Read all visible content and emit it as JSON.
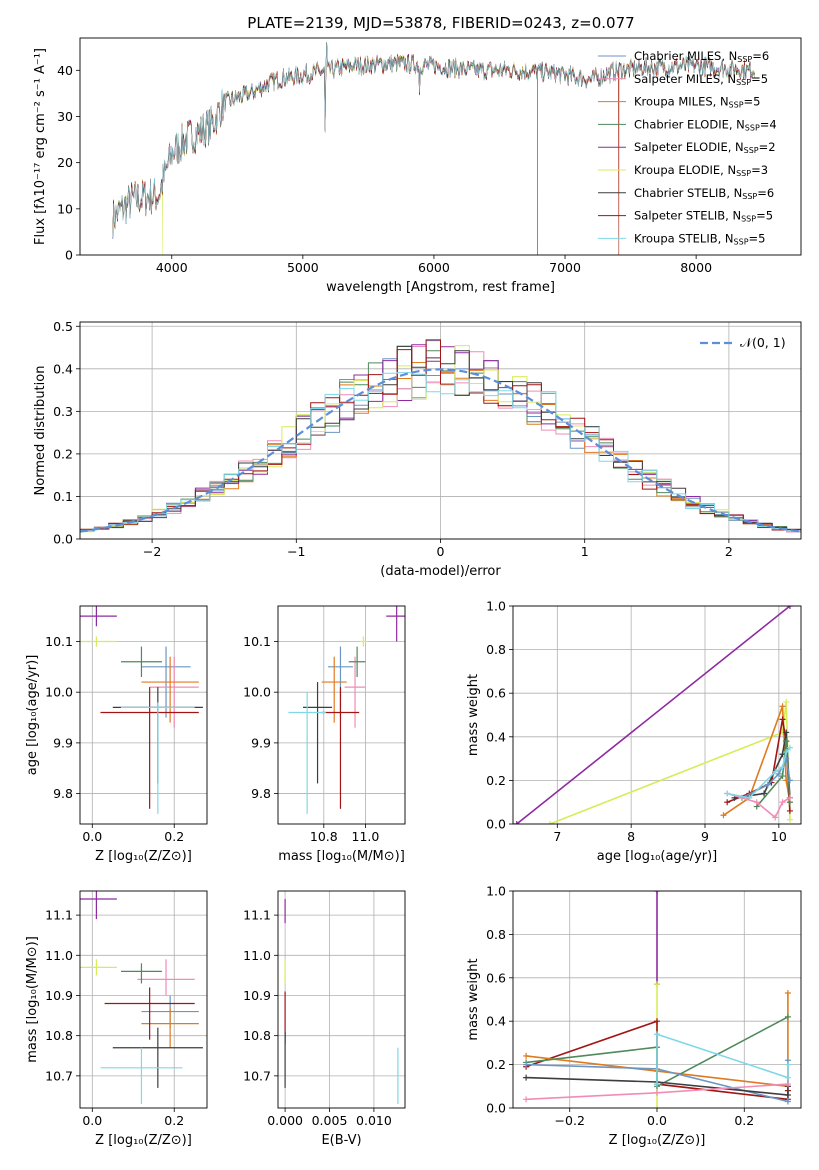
{
  "title": "PLATE=2139, MJD=53878, FIBERID=0243, z=0.077",
  "chart_data": [
    {
      "id": "spectrum",
      "type": "line",
      "xlabel": "wavelength [Angstrom, rest frame]",
      "ylabel": "Flux [fλ10⁻¹⁷ erg cm⁻² s⁻¹ A⁻¹]",
      "xlim": [
        3300,
        8800
      ],
      "ylim": [
        0,
        47
      ],
      "xticks": [
        4000,
        5000,
        6000,
        7000,
        8000
      ],
      "yticks": [
        0,
        10,
        20,
        30,
        40
      ],
      "grid": false,
      "legend_position": "top-right",
      "legend": [
        {
          "label": "Chabrier MILES, N",
          "sub": "SSP",
          "suffix": "=6",
          "color": "#6b96c4"
        },
        {
          "label": "Salpeter MILES, N",
          "sub": "SSP",
          "suffix": "=5",
          "color": "#f08cb6"
        },
        {
          "label": "Kroupa MILES, N",
          "sub": "SSP",
          "suffix": "=5",
          "color": "#e07a1f"
        },
        {
          "label": "Chabrier ELODIE, N",
          "sub": "SSP",
          "suffix": "=4",
          "color": "#4e8a5a"
        },
        {
          "label": "Salpeter ELODIE, N",
          "sub": "SSP",
          "suffix": "=2",
          "color": "#8e2ba0"
        },
        {
          "label": "Kroupa ELODIE, N",
          "sub": "SSP",
          "suffix": "=3",
          "color": "#d7ec5a"
        },
        {
          "label": "Chabrier STELIB, N",
          "sub": "SSP",
          "suffix": "=6",
          "color": "#3d3d3d"
        },
        {
          "label": "Salpeter STELIB, N",
          "sub": "SSP",
          "suffix": "=5",
          "color": "#a11515"
        },
        {
          "label": "Kroupa STELIB, N",
          "sub": "SSP",
          "suffix": "=5",
          "color": "#7fd8e8"
        }
      ],
      "continuum": {
        "x": [
          3550,
          3700,
          3900,
          4000,
          4100,
          4300,
          4400,
          4600,
          4800,
          5000,
          5200,
          5400,
          5700,
          6000,
          6300,
          6600,
          6900,
          7200,
          7400,
          7600,
          8000,
          8400
        ],
        "y": [
          8,
          12,
          13,
          22,
          25,
          28,
          33,
          35,
          38,
          39,
          40,
          41,
          41.5,
          41,
          40,
          40,
          39.5,
          38,
          40,
          40.5,
          41,
          40
        ]
      },
      "features": [
        {
          "name": "spike",
          "x": 5180,
          "y": 46
        },
        {
          "name": "dip",
          "x": 5170,
          "y": 27
        },
        {
          "name": "dip",
          "x": 5890,
          "y": 35
        },
        {
          "name": "drop",
          "x": 3930,
          "y": 0
        },
        {
          "name": "drop",
          "x": 6790,
          "y": 0
        },
        {
          "name": "drop",
          "x": 7410,
          "y": 0
        }
      ]
    },
    {
      "id": "residuals",
      "type": "histogram",
      "xlabel": "(data-model)/error",
      "ylabel": "Normed distribution",
      "xlim": [
        -2.5,
        2.5
      ],
      "ylim": [
        0,
        0.51
      ],
      "xticks": [
        -2,
        -1,
        0,
        1,
        2
      ],
      "yticks": [
        0.0,
        0.1,
        0.2,
        0.3,
        0.4,
        0.5
      ],
      "grid": true,
      "reference": {
        "label": "𝒩(0, 1)",
        "mean": 0,
        "sigma": 1,
        "color": "#5b8fd9"
      },
      "bin_width": 0.1,
      "legend_position": "top-right"
    },
    {
      "id": "age-vs-Z",
      "type": "errorbar",
      "xlabel": "Z [log₁₀(Z/Z⊙)]",
      "ylabel": "age  [log₁₀(age/yr)]",
      "xlim": [
        -0.03,
        0.28
      ],
      "ylim": [
        9.74,
        10.17
      ],
      "xticks": [
        0.0,
        0.2
      ],
      "yticks": [
        9.8,
        9.9,
        10.0,
        10.1
      ],
      "grid": true,
      "points": [
        {
          "x": 0.18,
          "y": 10.05,
          "xerr": 0.06,
          "yerr_lo": 0.1,
          "yerr_hi": 0.04,
          "color": "#6b96c4"
        },
        {
          "x": 0.2,
          "y": 10.01,
          "xerr": 0.06,
          "yerr_lo": 0.08,
          "yerr_hi": 0.06,
          "color": "#f08cb6"
        },
        {
          "x": 0.19,
          "y": 10.02,
          "xerr": 0.07,
          "yerr_lo": 0.08,
          "yerr_hi": 0.05,
          "color": "#e07a1f"
        },
        {
          "x": 0.12,
          "y": 10.06,
          "xerr": 0.05,
          "yerr_lo": 0.03,
          "yerr_hi": 0.03,
          "color": "#4e8a5a"
        },
        {
          "x": 0.01,
          "y": 10.15,
          "xerr": 0.05,
          "yerr_lo": 0.02,
          "yerr_hi": 0.02,
          "color": "#8e2ba0"
        },
        {
          "x": 0.01,
          "y": 10.1,
          "xerr": 0.05,
          "yerr_lo": 0.01,
          "yerr_hi": 0.01,
          "color": "#d7ec5a"
        },
        {
          "x": 0.16,
          "y": 9.97,
          "xerr": 0.11,
          "yerr_lo": 0.15,
          "yerr_hi": 0.04,
          "color": "#3d3d3d"
        },
        {
          "x": 0.14,
          "y": 9.96,
          "xerr": 0.12,
          "yerr_lo": 0.19,
          "yerr_hi": 0.05,
          "color": "#a11515"
        },
        {
          "x": 0.16,
          "y": 9.97,
          "xerr": 0.09,
          "yerr_lo": 0.21,
          "yerr_hi": 0.01,
          "color": "#7fd8e8"
        }
      ]
    },
    {
      "id": "age-vs-mass",
      "type": "errorbar",
      "xlabel": "mass [log₁₀(M/M⊙)]",
      "ylabel": "",
      "xlim": [
        10.58,
        11.19
      ],
      "ylim": [
        9.74,
        10.17
      ],
      "xticks": [
        10.8,
        11.0
      ],
      "yticks": [
        9.8,
        9.9,
        10.0,
        10.1
      ],
      "grid": true,
      "points": [
        {
          "x": 10.88,
          "y": 10.05,
          "xerr": 0.06,
          "yerr_lo": 0.1,
          "yerr_hi": 0.04,
          "color": "#6b96c4"
        },
        {
          "x": 10.95,
          "y": 10.01,
          "xerr": 0.05,
          "yerr_lo": 0.08,
          "yerr_hi": 0.06,
          "color": "#f08cb6"
        },
        {
          "x": 10.85,
          "y": 10.02,
          "xerr": 0.06,
          "yerr_lo": 0.08,
          "yerr_hi": 0.05,
          "color": "#e07a1f"
        },
        {
          "x": 10.96,
          "y": 10.06,
          "xerr": 0.04,
          "yerr_lo": 0.03,
          "yerr_hi": 0.03,
          "color": "#4e8a5a"
        },
        {
          "x": 11.15,
          "y": 10.15,
          "xerr": 0.05,
          "yerr_lo": 0.05,
          "yerr_hi": 0.02,
          "color": "#8e2ba0"
        },
        {
          "x": 10.99,
          "y": 10.1,
          "xerr": 0.02,
          "yerr_lo": 0.01,
          "yerr_hi": 0.01,
          "color": "#d7ec5a"
        },
        {
          "x": 10.77,
          "y": 9.97,
          "xerr": 0.07,
          "yerr_lo": 0.15,
          "yerr_hi": 0.05,
          "color": "#3d3d3d"
        },
        {
          "x": 10.88,
          "y": 9.96,
          "xerr": 0.09,
          "yerr_lo": 0.19,
          "yerr_hi": 0.05,
          "color": "#a11515"
        },
        {
          "x": 10.72,
          "y": 9.96,
          "xerr": 0.09,
          "yerr_lo": 0.2,
          "yerr_hi": 0.04,
          "color": "#7fd8e8"
        }
      ]
    },
    {
      "id": "weight-vs-age",
      "type": "line",
      "xlabel": "age  [log₁₀(age/yr)]",
      "ylabel": "mass weight",
      "xlim": [
        6.4,
        10.3
      ],
      "ylim": [
        0,
        1
      ],
      "xticks": [
        7,
        8,
        9,
        10
      ],
      "yticks": [
        0.0,
        0.2,
        0.4,
        0.6,
        0.8,
        1.0
      ],
      "grid": true,
      "series": [
        {
          "color": "#8e2ba0",
          "x": [
            6.45,
            10.15
          ],
          "y": [
            0.0,
            1.0
          ]
        },
        {
          "color": "#d7ec5a",
          "x": [
            6.9,
            10.05,
            10.1,
            10.15
          ],
          "y": [
            0.0,
            0.42,
            0.56,
            0.02
          ]
        },
        {
          "color": "#e07a1f",
          "x": [
            9.25,
            9.6,
            10.05,
            10.1,
            10.15
          ],
          "y": [
            0.04,
            0.12,
            0.54,
            0.2,
            0.1
          ]
        },
        {
          "color": "#a11515",
          "x": [
            9.3,
            9.6,
            9.9,
            10.05,
            10.1,
            10.15
          ],
          "y": [
            0.1,
            0.14,
            0.19,
            0.48,
            0.38,
            0.06
          ]
        },
        {
          "color": "#3d3d3d",
          "x": [
            9.4,
            9.8,
            10.05,
            10.1,
            10.15
          ],
          "y": [
            0.12,
            0.14,
            0.32,
            0.42,
            0.12
          ]
        },
        {
          "color": "#4e8a5a",
          "x": [
            9.7,
            10.05,
            10.1,
            10.15
          ],
          "y": [
            0.08,
            0.22,
            0.38,
            0.1
          ]
        },
        {
          "color": "#6b96c4",
          "x": [
            9.5,
            9.85,
            10.0,
            10.1,
            10.15
          ],
          "y": [
            0.12,
            0.18,
            0.23,
            0.3,
            0.2
          ]
        },
        {
          "color": "#f08cb6",
          "x": [
            9.3,
            9.7,
            9.95,
            10.05,
            10.15
          ],
          "y": [
            0.14,
            0.1,
            0.03,
            0.1,
            0.12
          ]
        },
        {
          "color": "#7fd8e8",
          "x": [
            9.3,
            9.6,
            9.95,
            10.05,
            10.1,
            10.15
          ],
          "y": [
            0.14,
            0.12,
            0.24,
            0.26,
            0.33,
            0.35
          ]
        }
      ]
    },
    {
      "id": "mass-vs-Z",
      "type": "errorbar",
      "xlabel": "Z [log₁₀(Z/Z⊙)]",
      "ylabel": "mass [log₁₀(M/M⊙)]",
      "xlim": [
        -0.03,
        0.28
      ],
      "ylim": [
        10.62,
        11.16
      ],
      "xticks": [
        0.0,
        0.2
      ],
      "yticks": [
        10.7,
        10.8,
        10.9,
        11.0,
        11.1
      ],
      "grid": true,
      "points": [
        {
          "x": 0.19,
          "y": 10.86,
          "xerr": 0.07,
          "yerr_lo": 0.04,
          "yerr_hi": 0.04,
          "color": "#6b96c4"
        },
        {
          "x": 0.18,
          "y": 10.94,
          "xerr": 0.07,
          "yerr_lo": 0.04,
          "yerr_hi": 0.05,
          "color": "#f08cb6"
        },
        {
          "x": 0.19,
          "y": 10.83,
          "xerr": 0.07,
          "yerr_lo": 0.06,
          "yerr_hi": 0.04,
          "color": "#e07a1f"
        },
        {
          "x": 0.12,
          "y": 10.96,
          "xerr": 0.05,
          "yerr_lo": 0.03,
          "yerr_hi": 0.02,
          "color": "#4e8a5a"
        },
        {
          "x": 0.01,
          "y": 11.14,
          "xerr": 0.05,
          "yerr_lo": 0.05,
          "yerr_hi": 0.02,
          "color": "#8e2ba0"
        },
        {
          "x": 0.01,
          "y": 10.97,
          "xerr": 0.05,
          "yerr_lo": 0.02,
          "yerr_hi": 0.02,
          "color": "#d7ec5a"
        },
        {
          "x": 0.16,
          "y": 10.77,
          "xerr": 0.11,
          "yerr_lo": 0.1,
          "yerr_hi": 0.05,
          "color": "#3d3d3d"
        },
        {
          "x": 0.14,
          "y": 10.88,
          "xerr": 0.11,
          "yerr_lo": 0.09,
          "yerr_hi": 0.04,
          "color": "#a11515"
        },
        {
          "x": 0.12,
          "y": 10.72,
          "xerr": 0.1,
          "yerr_lo": 0.09,
          "yerr_hi": 0.05,
          "color": "#7fd8e8"
        }
      ]
    },
    {
      "id": "mass-vs-ebv",
      "type": "errorbar",
      "xlabel": "E(B-V)",
      "ylabel": "",
      "xlim": [
        -0.0008,
        0.0135
      ],
      "ylim": [
        10.62,
        11.16
      ],
      "xticks": [
        0.0,
        0.005,
        0.01
      ],
      "xticklabels": [
        "0.000",
        "0.005",
        "0.010"
      ],
      "yticks": [
        10.7,
        10.8,
        10.9,
        11.0,
        11.1
      ],
      "grid": true,
      "points": [
        {
          "x": 0.0,
          "y": 11.12,
          "xerr": 0,
          "yerr_lo": 0.04,
          "yerr_hi": 0.02,
          "color": "#8e2ba0"
        },
        {
          "x": 0.0,
          "y": 10.97,
          "xerr": 0,
          "yerr_lo": 0.04,
          "yerr_hi": 0.02,
          "color": "#d7ec5a"
        },
        {
          "x": 0.0,
          "y": 10.86,
          "xerr": 0,
          "yerr_lo": 0.08,
          "yerr_hi": 0.05,
          "color": "#a11515"
        },
        {
          "x": 0.0,
          "y": 10.76,
          "xerr": 0,
          "yerr_lo": 0.09,
          "yerr_hi": 0.05,
          "color": "#3d3d3d"
        },
        {
          "x": 0.0127,
          "y": 10.7,
          "xerr": 0,
          "yerr_lo": 0.07,
          "yerr_hi": 0.07,
          "color": "#7fd8e8"
        }
      ]
    },
    {
      "id": "weight-vs-Z",
      "type": "line",
      "xlabel": "Z [log₁₀(Z/Z⊙)]",
      "ylabel": "mass weight",
      "xlim": [
        -0.33,
        0.33
      ],
      "ylim": [
        0,
        1
      ],
      "xticks": [
        -0.2,
        0.0,
        0.2
      ],
      "yticks": [
        0.0,
        0.2,
        0.4,
        0.6,
        0.8,
        1.0
      ],
      "grid": true,
      "series": [
        {
          "color": "#8e2ba0",
          "x": [
            0.0,
            0.0
          ],
          "y": [
            1.0,
            0.57
          ]
        },
        {
          "color": "#d7ec5a",
          "x": [
            0.0,
            0.0
          ],
          "y": [
            0.57,
            0.0
          ]
        },
        {
          "color": "#a11515",
          "x": [
            -0.3,
            0.0,
            0.0,
            0.3,
            0.3
          ],
          "y": [
            0.19,
            0.4,
            0.11,
            0.04,
            0.08
          ]
        },
        {
          "color": "#e07a1f",
          "x": [
            -0.3,
            0.0,
            0.3,
            0.3
          ],
          "y": [
            0.24,
            0.17,
            0.1,
            0.53
          ]
        },
        {
          "color": "#4e8a5a",
          "x": [
            -0.3,
            0.0,
            0.0,
            0.3
          ],
          "y": [
            0.21,
            0.28,
            0.1,
            0.42
          ]
        },
        {
          "color": "#6b96c4",
          "x": [
            -0.3,
            0.0,
            0.3,
            0.3
          ],
          "y": [
            0.2,
            0.18,
            0.03,
            0.22
          ]
        },
        {
          "color": "#3d3d3d",
          "x": [
            -0.3,
            0.0,
            0.3,
            0.3
          ],
          "y": [
            0.14,
            0.12,
            0.06,
            0.1
          ]
        },
        {
          "color": "#7fd8e8",
          "x": [
            0.0,
            0.0,
            0.3,
            0.3
          ],
          "y": [
            0.11,
            0.34,
            0.14,
            0.2
          ]
        },
        {
          "color": "#f08cb6",
          "x": [
            -0.3,
            0.0,
            0.3
          ],
          "y": [
            0.04,
            0.07,
            0.11
          ]
        }
      ]
    }
  ]
}
